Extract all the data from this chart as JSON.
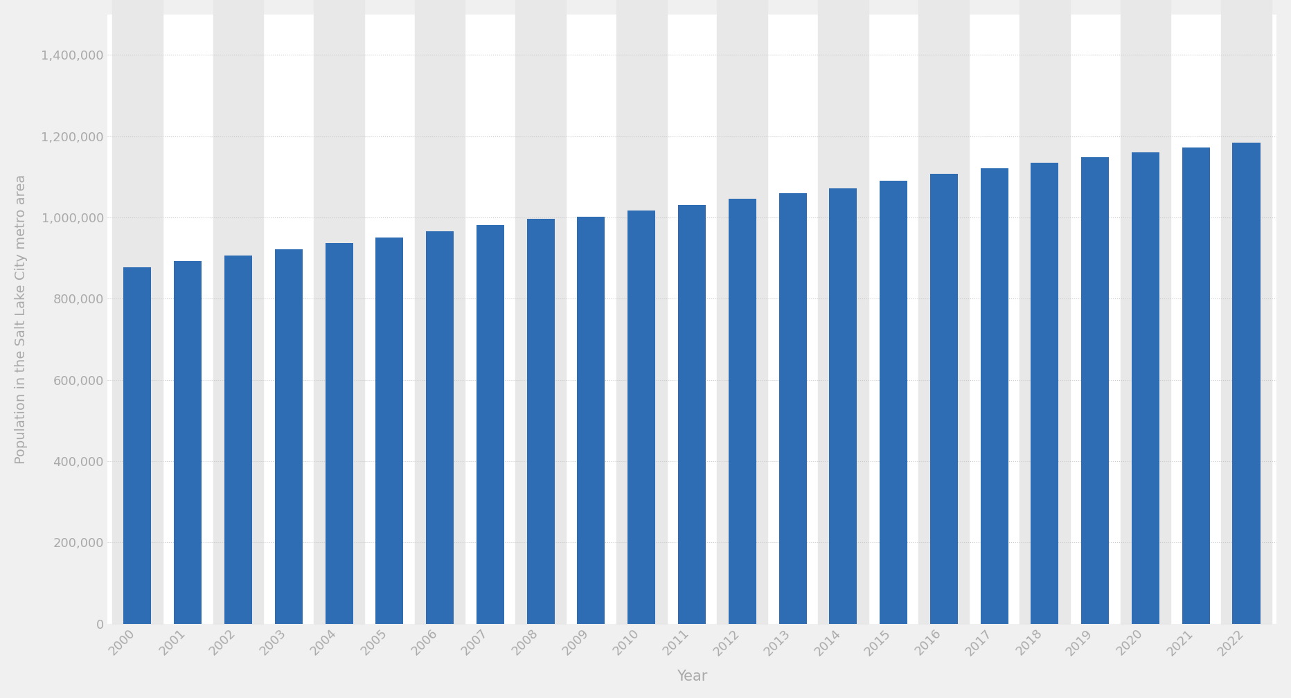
{
  "years": [
    2000,
    2001,
    2002,
    2003,
    2004,
    2005,
    2006,
    2007,
    2008,
    2009,
    2010,
    2011,
    2012,
    2013,
    2014,
    2015,
    2016,
    2017,
    2018,
    2019,
    2020,
    2021,
    2022
  ],
  "population": [
    878000,
    893000,
    906000,
    921000,
    937000,
    950000,
    966000,
    982000,
    996000,
    1002000,
    1017000,
    1030000,
    1046000,
    1059000,
    1072000,
    1090000,
    1107000,
    1121000,
    1134000,
    1148000,
    1160000,
    1172000,
    1185000
  ],
  "bar_color": "#2e6db4",
  "background_color": "#f0f0f0",
  "plot_bg_color": "#ffffff",
  "ylabel": "Population in the Salt Lake City metro area",
  "xlabel": "Year",
  "yticks": [
    0,
    200000,
    400000,
    600000,
    800000,
    1000000,
    1200000,
    1400000
  ],
  "ylim": [
    0,
    1500000
  ],
  "grid_color": "#c8c8c8",
  "label_color": "#aaaaaa",
  "stripe_color": "#e8e8e8",
  "bar_width": 0.55
}
